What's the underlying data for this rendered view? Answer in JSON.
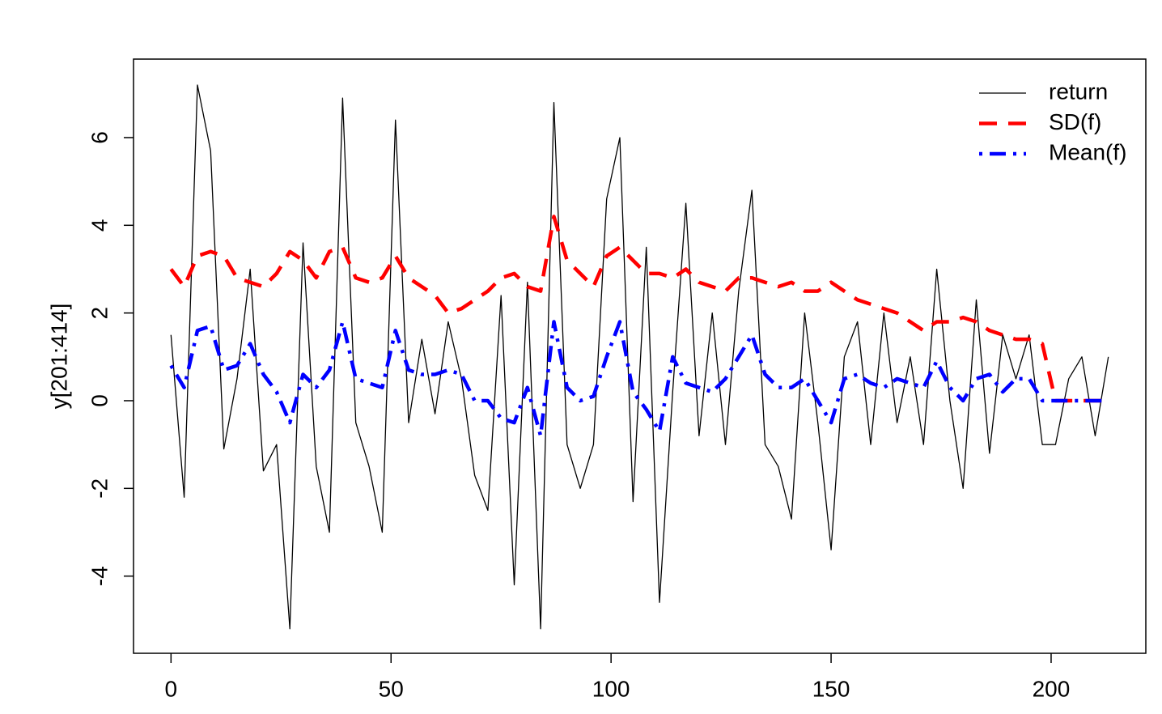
{
  "chart_data": {
    "type": "line",
    "y_label": "y[201:414]",
    "x": [
      0,
      3,
      6,
      9,
      12,
      15,
      18,
      21,
      24,
      27,
      30,
      33,
      36,
      39,
      42,
      45,
      48,
      51,
      54,
      57,
      60,
      63,
      66,
      69,
      72,
      75,
      78,
      81,
      84,
      87,
      90,
      93,
      96,
      99,
      102,
      105,
      108,
      111,
      114,
      117,
      120,
      123,
      126,
      129,
      132,
      135,
      138,
      141,
      144,
      147,
      150,
      153,
      156,
      159,
      162,
      165,
      168,
      171,
      174,
      177,
      180,
      183,
      186,
      189,
      192,
      195,
      198,
      201,
      204,
      207,
      210,
      213
    ],
    "series": [
      {
        "name": "return",
        "color": "#000000",
        "line_style": "solid",
        "values": [
          1.5,
          -2.2,
          7.2,
          5.7,
          -1.1,
          0.5,
          3.0,
          -1.6,
          -1.0,
          -5.2,
          3.6,
          -1.5,
          -3.0,
          6.9,
          -0.5,
          -1.5,
          -3.0,
          6.4,
          -0.5,
          1.4,
          -0.3,
          1.8,
          0.5,
          -1.7,
          -2.5,
          2.4,
          -4.2,
          2.7,
          -5.2,
          6.8,
          -1.0,
          -2.0,
          -1.0,
          4.6,
          6.0,
          -2.3,
          3.5,
          -4.6,
          0.2,
          4.5,
          -0.8,
          2.0,
          -1.0,
          2.5,
          4.8,
          -1.0,
          -1.5,
          -2.7,
          2.0,
          -0.5,
          -3.4,
          1.0,
          1.8,
          -1.0,
          2.0,
          -0.5,
          1.0,
          -1.0,
          3.0,
          0.0,
          -2.0,
          2.3,
          -1.2,
          1.5,
          0.5,
          1.5,
          -1.0,
          -1.0,
          0.5,
          1.0,
          -0.8,
          1.0
        ]
      },
      {
        "name": "SD(f)",
        "color": "#ff0000",
        "line_style": "dashed",
        "values": [
          3.0,
          2.6,
          3.3,
          3.4,
          3.3,
          2.8,
          2.7,
          2.6,
          2.9,
          3.4,
          3.2,
          2.8,
          3.4,
          3.5,
          2.8,
          2.7,
          2.8,
          3.3,
          2.8,
          2.6,
          2.4,
          2.0,
          2.1,
          2.3,
          2.5,
          2.8,
          2.9,
          2.6,
          2.5,
          4.2,
          3.2,
          2.9,
          2.6,
          3.3,
          3.5,
          3.2,
          2.9,
          2.9,
          2.8,
          3.0,
          2.7,
          2.6,
          2.5,
          2.8,
          2.8,
          2.7,
          2.6,
          2.7,
          2.5,
          2.5,
          2.7,
          2.5,
          2.3,
          2.2,
          2.1,
          2.0,
          1.8,
          1.6,
          1.8,
          1.8,
          1.9,
          1.8,
          1.6,
          1.5,
          1.4,
          1.4,
          1.3,
          0,
          0,
          0,
          0,
          0
        ]
      },
      {
        "name": "Mean(f)",
        "color": "#0000ff",
        "line_style": "dotdash",
        "values": [
          0.8,
          0.3,
          1.6,
          1.7,
          0.7,
          0.8,
          1.3,
          0.6,
          0.2,
          -0.5,
          0.6,
          0.3,
          0.7,
          1.8,
          0.5,
          0.4,
          0.3,
          1.6,
          0.7,
          0.6,
          0.6,
          0.7,
          0.6,
          0.0,
          0.0,
          -0.4,
          -0.5,
          0.3,
          -0.8,
          1.8,
          0.3,
          0.0,
          0.1,
          1.0,
          1.8,
          0.2,
          -0.2,
          -0.7,
          1.0,
          0.4,
          0.3,
          0.2,
          0.5,
          1.0,
          1.5,
          0.6,
          0.3,
          0.3,
          0.5,
          0.0,
          -0.5,
          0.5,
          0.6,
          0.4,
          0.3,
          0.5,
          0.4,
          0.3,
          0.9,
          0.3,
          0.0,
          0.5,
          0.6,
          0.2,
          0.5,
          0.5,
          0.0,
          0,
          0,
          0,
          0,
          0
        ]
      }
    ],
    "xlim": [
      -8.52,
      221.52
    ],
    "xticks": [
      0,
      50,
      100,
      150,
      200
    ],
    "ylim": [
      -5.76,
      7.79
    ],
    "yticks": [
      -4,
      -2,
      0,
      2,
      4,
      6
    ],
    "legend": "top-right"
  }
}
